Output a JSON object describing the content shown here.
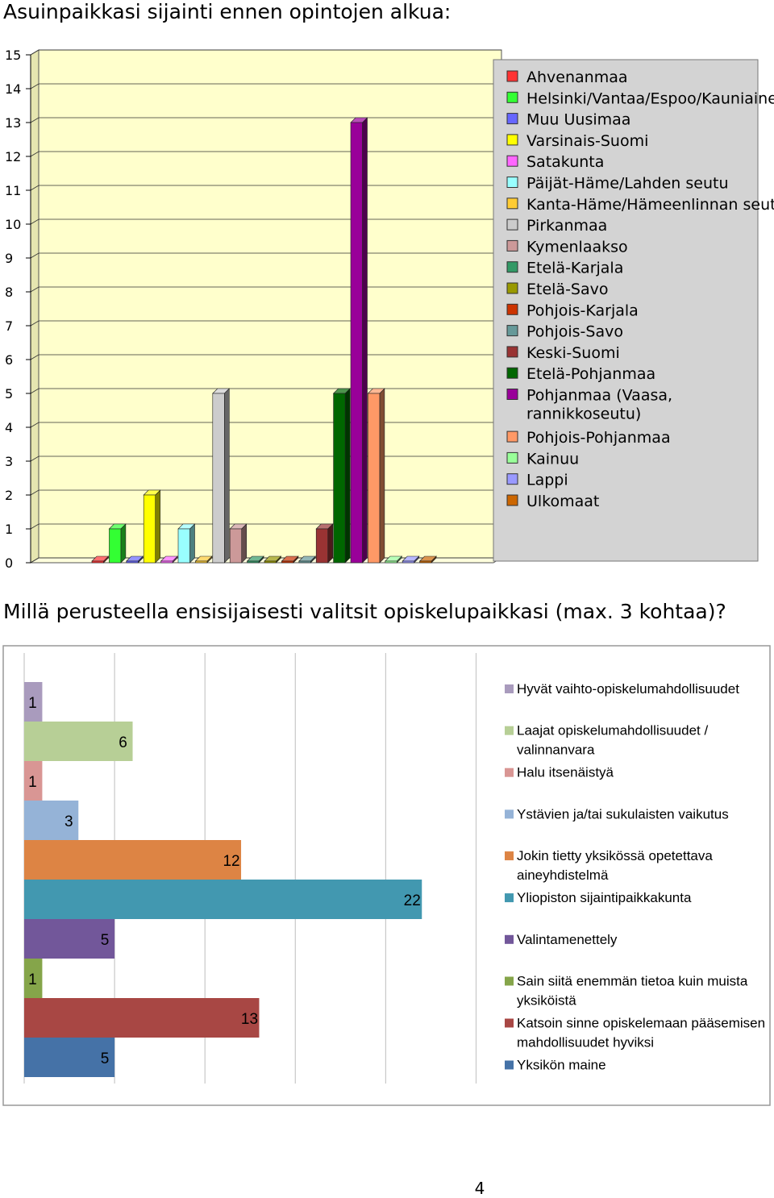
{
  "heading1": "Asuinpaikkasi sijainti ennen opintojen alkua:",
  "heading2": "Millä perusteella ensisijaisesti valitsit opiskelupaikkasi (max. 3 kohtaa)?",
  "page_number": "4",
  "chart_data": [
    {
      "type": "bar",
      "title": "Asuinpaikkasi sijainti ennen opintojen alkua:",
      "orientation": "vertical",
      "three_d": true,
      "ylim": [
        0,
        15
      ],
      "yticks": [
        0,
        1,
        2,
        3,
        4,
        5,
        6,
        7,
        8,
        9,
        10,
        11,
        12,
        13,
        14,
        15
      ],
      "grid": true,
      "legend_position": "right",
      "series": [
        {
          "name": "Ahvenanmaa",
          "values": [
            0
          ],
          "color": "#ff3333"
        },
        {
          "name": "Helsinki/Vantaa/Espoo/Kauniainen",
          "values": [
            1
          ],
          "color": "#33ff33"
        },
        {
          "name": "Muu Uusimaa",
          "values": [
            0
          ],
          "color": "#6666ff"
        },
        {
          "name": "Varsinais-Suomi",
          "values": [
            2
          ],
          "color": "#ffff00"
        },
        {
          "name": "Satakunta",
          "values": [
            0
          ],
          "color": "#ff66ff"
        },
        {
          "name": "Päijät-Häme/Lahden seutu",
          "values": [
            1
          ],
          "color": "#99ffff"
        },
        {
          "name": "Kanta-Häme/Hämeenlinnan seutu",
          "values": [
            0
          ],
          "color": "#ffcc33"
        },
        {
          "name": "Pirkanmaa",
          "values": [
            5
          ],
          "color": "#cccccc"
        },
        {
          "name": "Kymenlaakso",
          "values": [
            1
          ],
          "color": "#cc9999"
        },
        {
          "name": "Etelä-Karjala",
          "values": [
            0
          ],
          "color": "#339966"
        },
        {
          "name": "Etelä-Savo",
          "values": [
            0
          ],
          "color": "#999900"
        },
        {
          "name": "Pohjois-Karjala",
          "values": [
            0
          ],
          "color": "#cc3300"
        },
        {
          "name": "Pohjois-Savo",
          "values": [
            0
          ],
          "color": "#669999"
        },
        {
          "name": "Keski-Suomi",
          "values": [
            1
          ],
          "color": "#993333"
        },
        {
          "name": "Etelä-Pohjanmaa",
          "values": [
            5
          ],
          "color": "#006600"
        },
        {
          "name": "Pohjanmaa (Vaasa, rannikkoseutu)",
          "values": [
            13
          ],
          "color": "#990099"
        },
        {
          "name": "Pohjois-Pohjanmaa",
          "values": [
            5
          ],
          "color": "#ff9966"
        },
        {
          "name": "Kainuu",
          "values": [
            0
          ],
          "color": "#99ff99"
        },
        {
          "name": "Lappi",
          "values": [
            0
          ],
          "color": "#9999ff"
        },
        {
          "name": "Ulkomaat",
          "values": [
            0
          ],
          "color": "#cc6600"
        }
      ]
    },
    {
      "type": "bar",
      "title": "Millä perusteella ensisijaisesti valitsit opiskelupaikkasi (max. 3 kohtaa)?",
      "orientation": "horizontal",
      "xlim": [
        0,
        25
      ],
      "grid": true,
      "legend_position": "right",
      "data_labels": true,
      "series": [
        {
          "name": "Hyvät vaihto-opiskelumahdollisuudet",
          "values": [
            1
          ],
          "color": "#a99bbd"
        },
        {
          "name": "Laajat opiskelumahdollisuudet / valinnanvara",
          "values": [
            6
          ],
          "color": "#b7cf96"
        },
        {
          "name": "Halu itsenäistyä",
          "values": [
            1
          ],
          "color": "#d99694"
        },
        {
          "name": "Ystävien ja/tai sukulaisten vaikutus",
          "values": [
            3
          ],
          "color": "#95b3d7"
        },
        {
          "name": "Jokin tietty yksikössä opetettava aineyhdistelmä",
          "values": [
            12
          ],
          "color": "#dd8444"
        },
        {
          "name": "Yliopiston sijaintipaikkakunta",
          "values": [
            22
          ],
          "color": "#4298b0"
        },
        {
          "name": "Valintamenettely",
          "values": [
            5
          ],
          "color": "#72579a"
        },
        {
          "name": "Sain siitä enemmän tietoa kuin muista yksiköistä",
          "values": [
            1
          ],
          "color": "#85a54a"
        },
        {
          "name": "Katsoin sinne opiskelemaan pääsemisen mahdollisuudet hyviksi",
          "values": [
            13
          ],
          "color": "#a84744"
        },
        {
          "name": "Yksikön maine",
          "values": [
            5
          ],
          "color": "#4572a7"
        }
      ]
    }
  ]
}
